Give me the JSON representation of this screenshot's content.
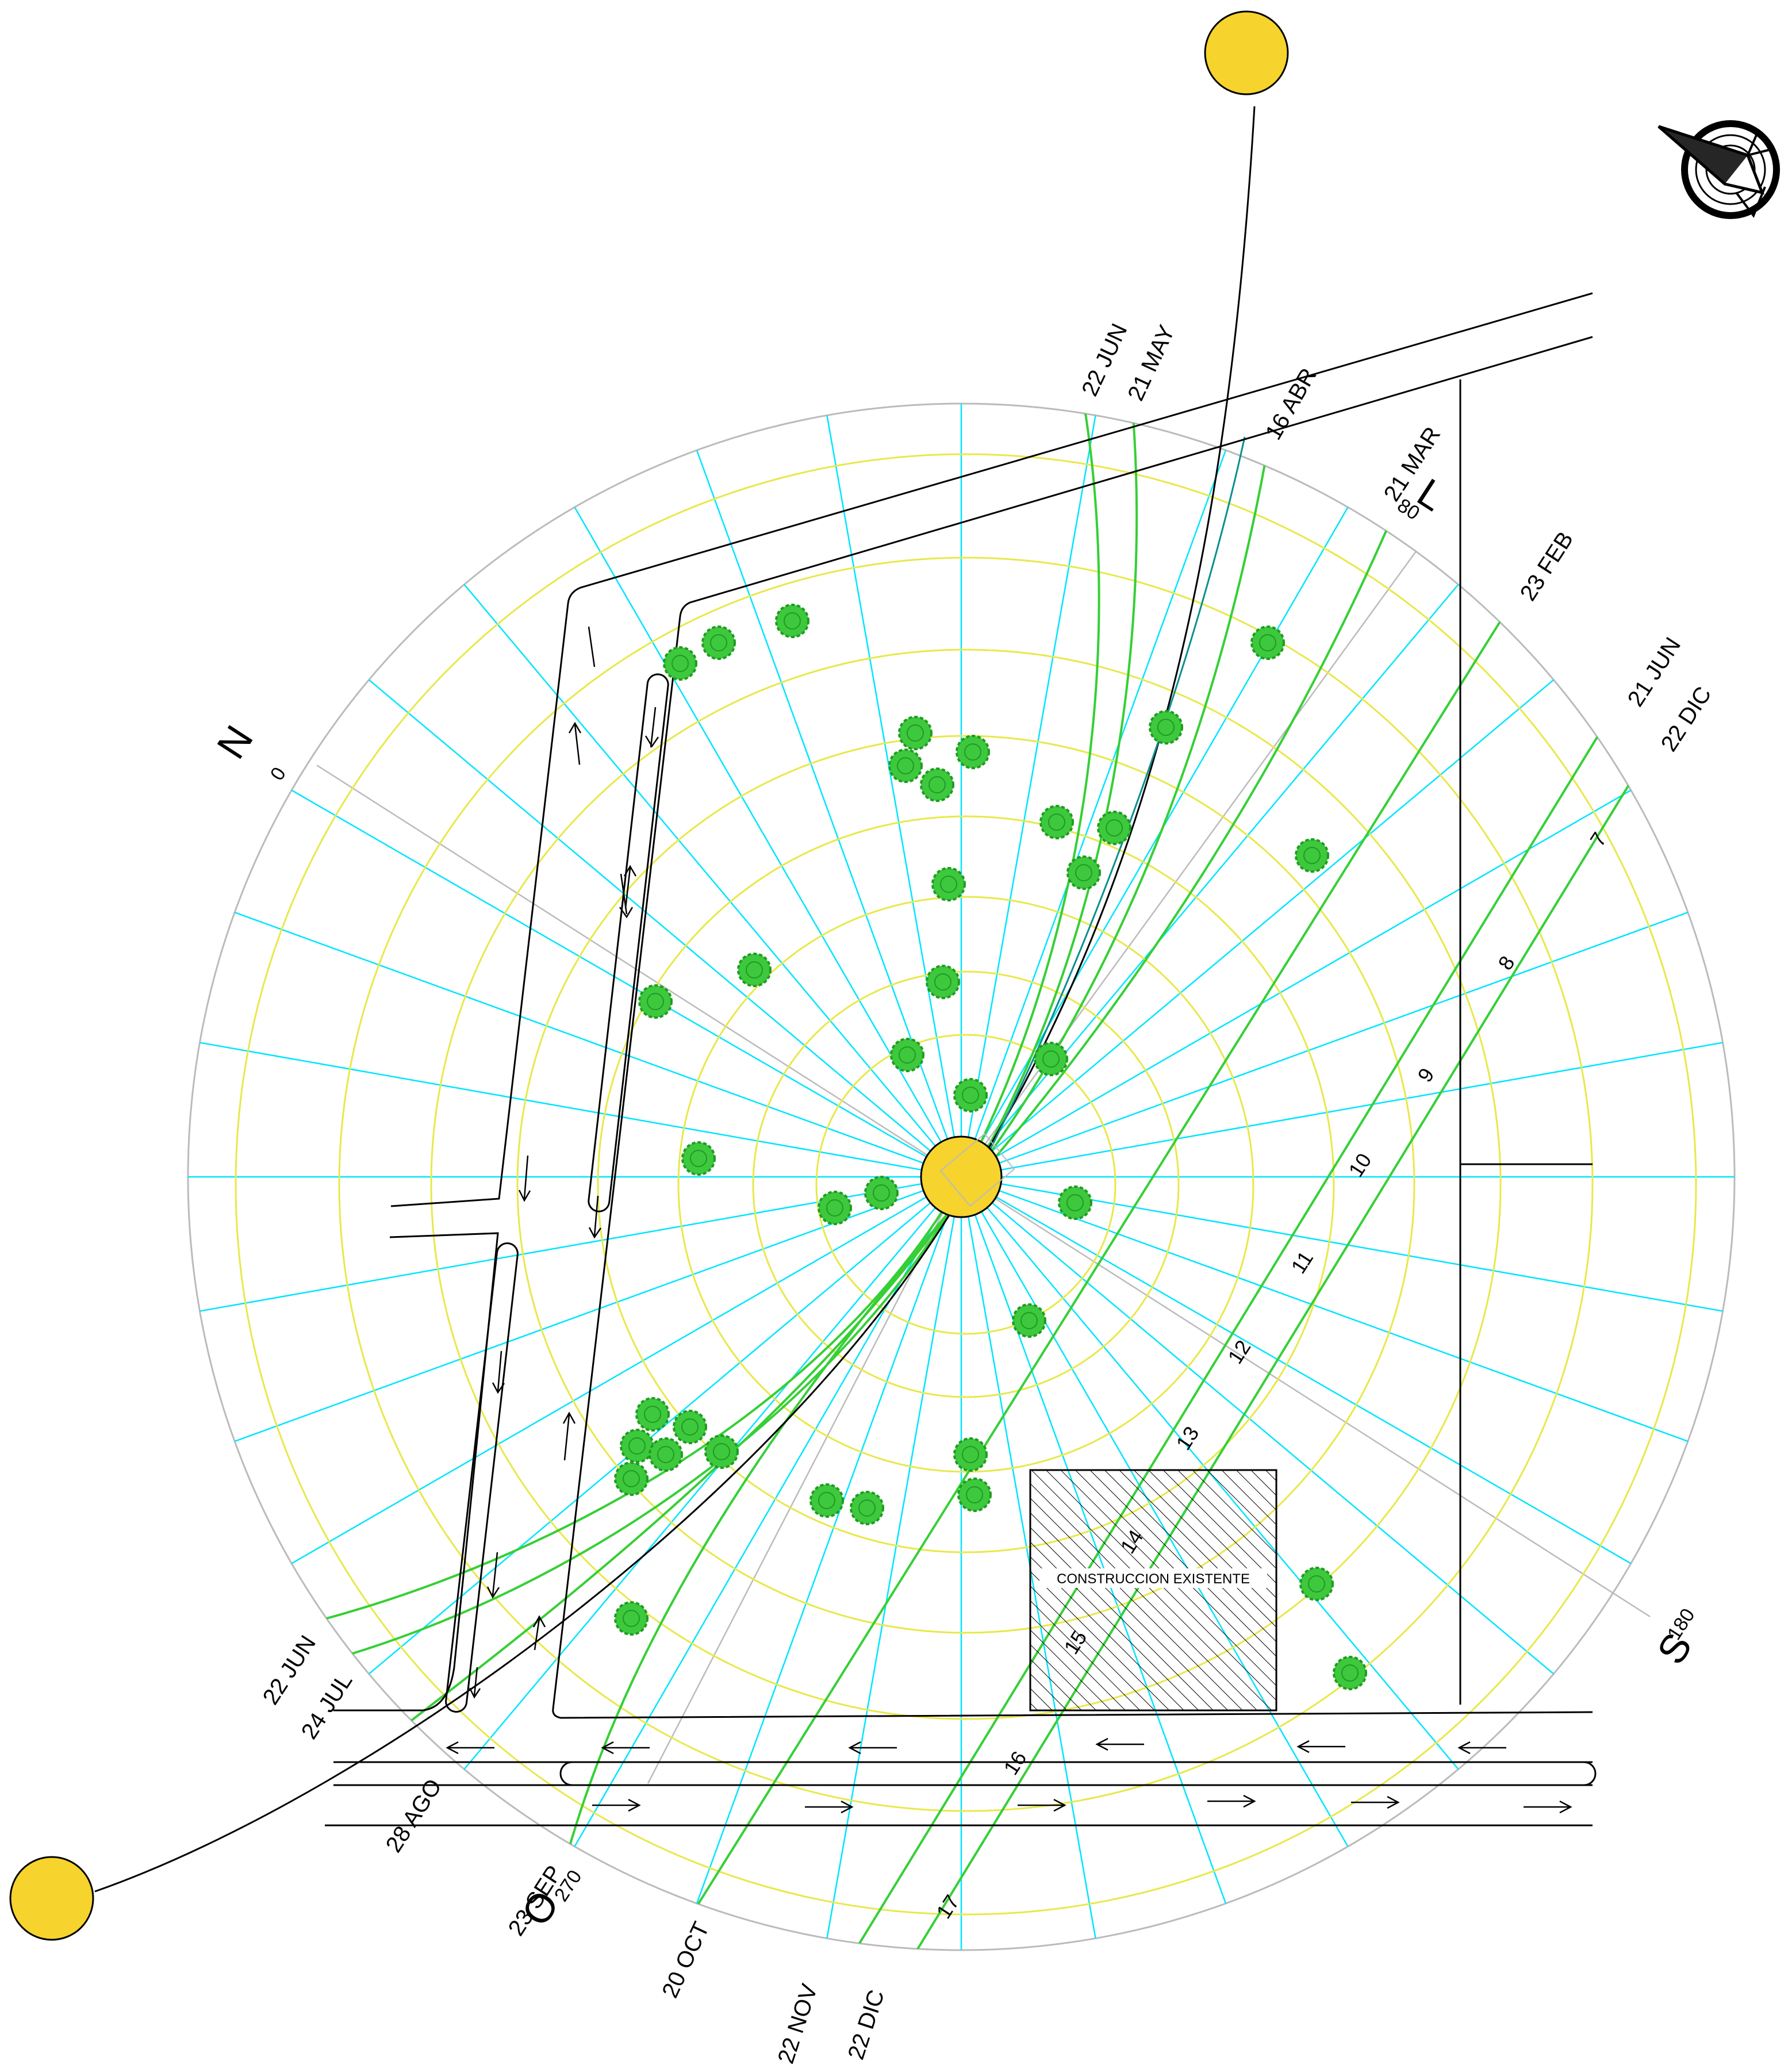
{
  "cardinals": {
    "north": {
      "letter": "N",
      "degree": "0"
    },
    "east": {
      "letter": "L",
      "degree": "80"
    },
    "south": {
      "letter": "S",
      "degree": "180"
    },
    "west": {
      "letter": "O",
      "degree": "270"
    }
  },
  "date_labels": {
    "jun22_top": "22 JUN",
    "may21": "21 MAY",
    "abr16": "16 ABR",
    "mar21": "21 MAR",
    "feb23": "23 FEB",
    "jun21": "21 JUN",
    "dic22_right": "22 DIC",
    "jun22_left": "22 JUN",
    "jul24": "24 JUL",
    "ago28": "28 AGO",
    "sep23": "23 SEP",
    "oct20": "20 OCT",
    "nov22": "22 NOV",
    "dic22_bottom": "22 DIC"
  },
  "hour_labels": {
    "h7": "7",
    "h8": "8",
    "h9": "9",
    "h10": "10",
    "h11": "11",
    "h12": "12",
    "h13": "13",
    "h14": "14",
    "h15": "15",
    "h16": "16",
    "h17": "17"
  },
  "building": {
    "label": "CONSTRUCCION EXISTENTE"
  },
  "colors": {
    "sun": "#f6d32d",
    "tree": "#3ec83e",
    "azimuth_ray": "#00e5ff",
    "date_curve": "#36cf36",
    "hour_arc": "#e8e84a",
    "circle": "#bbbbbb",
    "linework": "#000000"
  },
  "icons": [
    "sun-icon",
    "tree-icon",
    "compass-rose-icon",
    "arrow-icon"
  ]
}
